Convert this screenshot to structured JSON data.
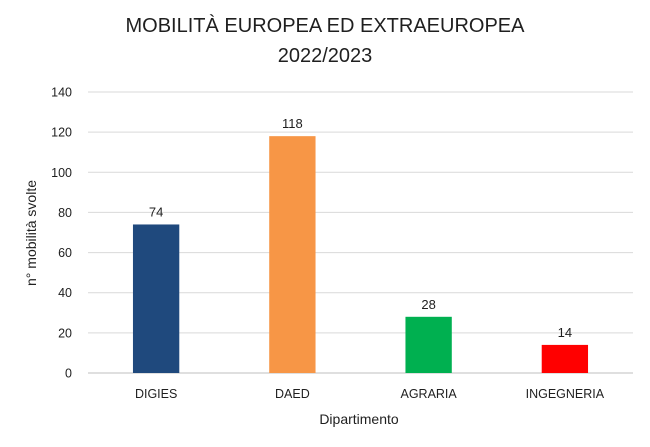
{
  "chart_data": {
    "type": "bar",
    "title_lines": [
      "MOBILITÀ EUROPEA ED EXTRAEUROPEA",
      "2022/2023"
    ],
    "categories": [
      "DIGIES",
      "DAED",
      "AGRARIA",
      "INGEGNERIA"
    ],
    "values": [
      74,
      118,
      28,
      14
    ],
    "colors": [
      "#1f497d",
      "#f79646",
      "#00b050",
      "#ff0000"
    ],
    "xlabel": "Dipartimento",
    "ylabel": "n° mobilità svolte",
    "ylim": [
      0,
      140
    ],
    "yticks": [
      0,
      20,
      40,
      60,
      80,
      100,
      120,
      140
    ],
    "grid": true,
    "legend": "none"
  }
}
